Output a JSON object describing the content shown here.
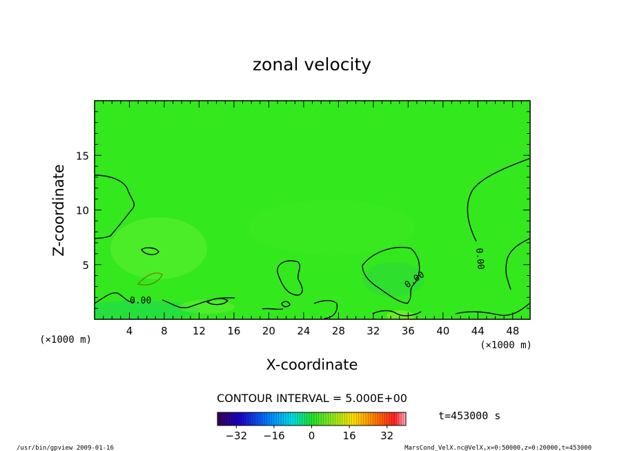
{
  "chart_data": {
    "type": "heatmap",
    "title": "zonal velocity",
    "xlabel": "X-coordinate",
    "ylabel": "Z-coordinate",
    "x_unit": "(×1000 m)",
    "y_unit": "(×1000 m)",
    "xlim": [
      0,
      50
    ],
    "ylim": [
      0,
      20
    ],
    "x_ticks": [
      4,
      8,
      12,
      16,
      20,
      24,
      28,
      32,
      36,
      40,
      44,
      48
    ],
    "y_ticks": [
      5,
      10,
      15
    ],
    "contour_interval_text": "CONTOUR INTERVAL = 5.000E+00",
    "contour_labels": [
      "0.00",
      "0.00",
      "0.00"
    ],
    "colorbar": {
      "range": [
        -40,
        40
      ],
      "ticks": [
        -32,
        -16,
        0,
        16,
        32
      ]
    },
    "time_text": "t=453000 s",
    "field_colors": {
      "background": "#33e81c",
      "light_patch": "#5cf030",
      "cool_patch": "#1fdc4a",
      "warm_patch": "#7aee24"
    }
  },
  "footer": {
    "left_text": "/usr/bin/gpview  2009-01-16",
    "right_text": "MarsCond_VelX.nc@VelX,x=0:50000,z=0:20000,t=453000"
  }
}
